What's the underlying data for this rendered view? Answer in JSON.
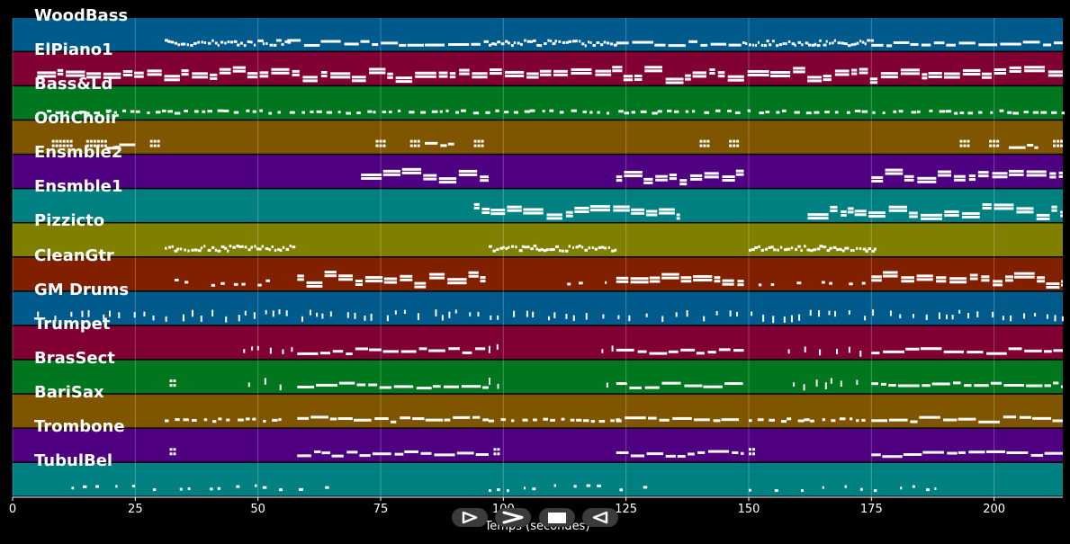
{
  "chart_data": {
    "type": "piano-roll",
    "title": "",
    "xlabel": "Temps (secondes)",
    "xlim": [
      0,
      214
    ],
    "xticks": [
      0,
      25,
      50,
      75,
      100,
      125,
      150,
      175,
      200
    ],
    "grid": true,
    "tracks": [
      {
        "name": "WoodBass",
        "color": "#005a8c",
        "segments": [
          [
            31,
            56,
            "dense"
          ],
          [
            56,
            97,
            "line"
          ],
          [
            97,
            123,
            "dense"
          ],
          [
            123,
            148,
            "line"
          ],
          [
            148,
            175,
            "dense"
          ],
          [
            175,
            214,
            "line"
          ]
        ]
      },
      {
        "name": "ElPiano1",
        "color": "#800033",
        "segments": [
          [
            5,
            214,
            "chords"
          ]
        ]
      },
      {
        "name": "Bass&Ld",
        "color": "#00761e",
        "segments": [
          [
            7,
            214,
            "dots"
          ]
        ]
      },
      {
        "name": "OohChoir",
        "color": "#7f5500",
        "segments": [
          [
            8,
            12,
            "blocks"
          ],
          [
            15,
            19,
            "blocks"
          ],
          [
            19,
            25,
            "line"
          ],
          [
            28,
            30,
            "blocks"
          ],
          [
            74,
            76,
            "blocks"
          ],
          [
            81,
            83,
            "blocks"
          ],
          [
            84,
            90,
            "line"
          ],
          [
            94,
            96,
            "blocks"
          ],
          [
            140,
            142,
            "blocks"
          ],
          [
            146,
            148,
            "blocks"
          ],
          [
            193,
            195,
            "blocks"
          ],
          [
            199,
            201,
            "blocks"
          ],
          [
            203,
            209,
            "line"
          ],
          [
            212,
            214,
            "blocks"
          ]
        ]
      },
      {
        "name": "Ensmble2",
        "color": "#4e0080",
        "segments": [
          [
            71,
            97,
            "chords"
          ],
          [
            123,
            149,
            "chords"
          ],
          [
            175,
            214,
            "chords"
          ]
        ]
      },
      {
        "name": "Ensmble1",
        "color": "#008080",
        "segments": [
          [
            94,
            136,
            "chords"
          ],
          [
            162,
            214,
            "chords"
          ]
        ]
      },
      {
        "name": "Pizzicto",
        "color": "#808000",
        "segments": [
          [
            31,
            57,
            "dense"
          ],
          [
            97,
            123,
            "dense"
          ],
          [
            150,
            176,
            "dense"
          ]
        ]
      },
      {
        "name": "CleanGtr",
        "color": "#802000",
        "segments": [
          [
            33,
            56,
            "sparse"
          ],
          [
            58,
            97,
            "chords"
          ],
          [
            113,
            123,
            "sparse"
          ],
          [
            123,
            149,
            "chords"
          ],
          [
            152,
            174,
            "sparse"
          ],
          [
            175,
            214,
            "chords"
          ]
        ]
      },
      {
        "name": "GM Drums",
        "color": "#005a8c",
        "segments": [
          [
            5,
            214,
            "ticks"
          ]
        ]
      },
      {
        "name": "Trumpet",
        "color": "#800033",
        "segments": [
          [
            47,
            57,
            "ticks"
          ],
          [
            58,
            97,
            "line"
          ],
          [
            97,
            99,
            "ticks"
          ],
          [
            120,
            123,
            "ticks"
          ],
          [
            123,
            149,
            "line"
          ],
          [
            158,
            174,
            "ticks"
          ],
          [
            175,
            214,
            "line"
          ]
        ]
      },
      {
        "name": "BrasSect",
        "color": "#00761e",
        "segments": [
          [
            32,
            33,
            "blocks"
          ],
          [
            48,
            57,
            "ticks"
          ],
          [
            58,
            97,
            "line"
          ],
          [
            97,
            99,
            "ticks"
          ],
          [
            121,
            123,
            "ticks"
          ],
          [
            123,
            149,
            "line"
          ],
          [
            159,
            174,
            "ticks"
          ],
          [
            175,
            214,
            "line"
          ]
        ]
      },
      {
        "name": "BariSax",
        "color": "#7f5500",
        "segments": [
          [
            31,
            56,
            "dots"
          ],
          [
            58,
            97,
            "line"
          ],
          [
            97,
            123,
            "dots"
          ],
          [
            123,
            148,
            "line"
          ],
          [
            150,
            175,
            "dots"
          ],
          [
            175,
            214,
            "line"
          ]
        ]
      },
      {
        "name": "Trombone",
        "color": "#4e0080",
        "segments": [
          [
            32,
            33,
            "blocks"
          ],
          [
            58,
            97,
            "line"
          ],
          [
            98,
            99,
            "blocks"
          ],
          [
            123,
            149,
            "line"
          ],
          [
            150,
            151,
            "blocks"
          ],
          [
            175,
            214,
            "line"
          ]
        ]
      },
      {
        "name": "TubulBel",
        "color": "#008080",
        "segments": [
          [
            12,
            65,
            "sparse"
          ],
          [
            97,
            130,
            "sparse"
          ],
          [
            150,
            190,
            "sparse"
          ]
        ]
      }
    ]
  },
  "controls": {
    "play_icon": "play-icon",
    "forward_icon": "fast-forward-icon",
    "stop_icon": "stop-icon",
    "rewind_icon": "rewind-icon"
  }
}
